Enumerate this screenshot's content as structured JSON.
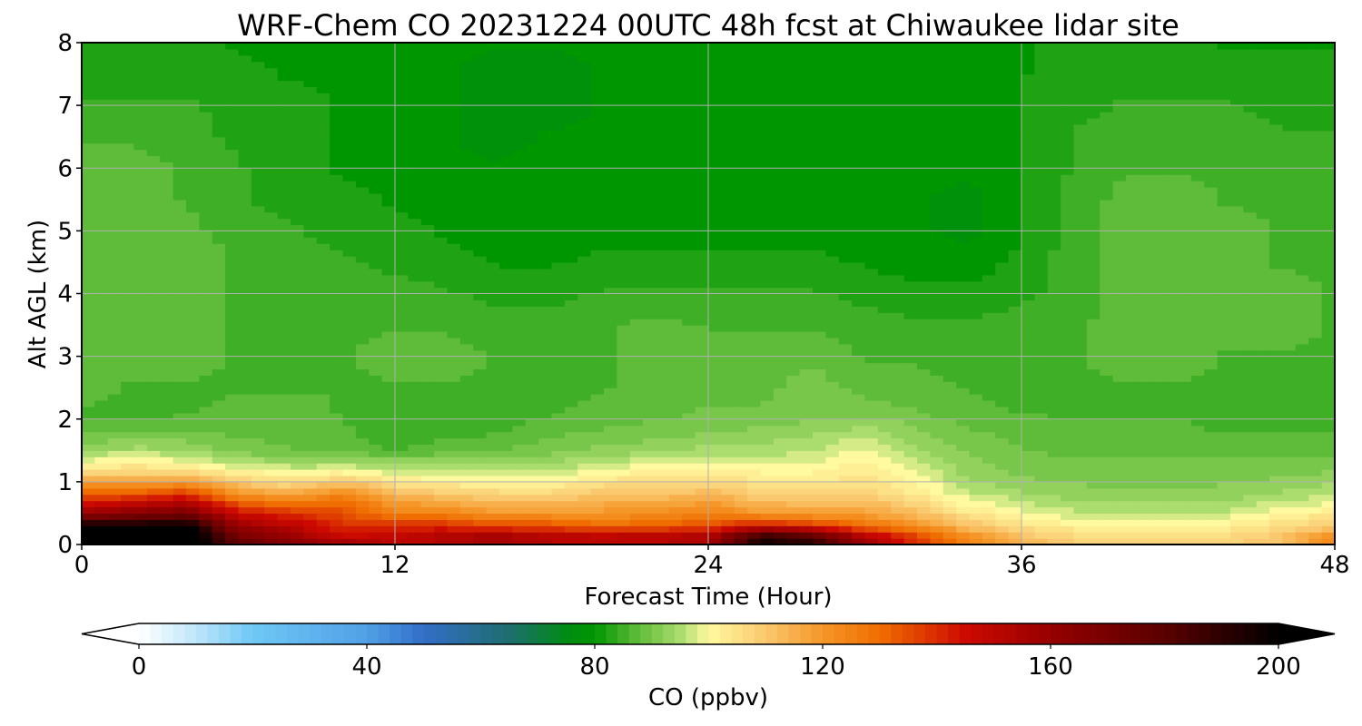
{
  "chart_data": {
    "type": "heatmap",
    "title": "WRF-Chem CO  20231224 00UTC 48h fcst at Chiwaukee lidar site",
    "xlabel": "Forecast Time (Hour)",
    "ylabel": "Alt AGL (km)",
    "xlim": [
      0,
      48
    ],
    "ylim": [
      0,
      8
    ],
    "x_ticks": [
      "0",
      "12",
      "24",
      "36",
      "48"
    ],
    "y_ticks": [
      "0",
      "1",
      "2",
      "3",
      "4",
      "5",
      "6",
      "7",
      "8"
    ],
    "grid": true,
    "colorbar": {
      "label": "CO  (ppbv)",
      "min": 0,
      "max": 200,
      "ticks": [
        "0",
        "40",
        "80",
        "120",
        "160",
        "200"
      ],
      "extend": "both"
    },
    "x_hours": [
      0,
      2,
      4,
      6,
      8,
      10,
      12,
      14,
      16,
      18,
      20,
      22,
      24,
      26,
      28,
      30,
      32,
      34,
      36,
      38,
      40,
      42,
      44,
      46,
      48
    ],
    "y_km": [
      0,
      0.15,
      0.3,
      0.5,
      0.7,
      0.9,
      1.1,
      1.3,
      1.5,
      1.8,
      2.1,
      2.5,
      3.0,
      3.5,
      4.0,
      4.5,
      5.0,
      5.5,
      6.0,
      6.5,
      7.0,
      7.5,
      8.0
    ],
    "co_ppbv": [
      [
        205,
        205,
        208,
        180,
        165,
        160,
        150,
        152,
        155,
        152,
        150,
        150,
        155,
        200,
        195,
        160,
        140,
        125,
        115,
        110,
        108,
        107,
        108,
        112,
        125
      ],
      [
        205,
        205,
        208,
        170,
        158,
        145,
        148,
        152,
        155,
        150,
        148,
        150,
        152,
        185,
        175,
        150,
        135,
        120,
        110,
        106,
        105,
        105,
        106,
        110,
        120
      ],
      [
        200,
        198,
        202,
        160,
        150,
        140,
        140,
        140,
        135,
        135,
        130,
        132,
        135,
        145,
        140,
        130,
        122,
        112,
        105,
        102,
        100,
        101,
        102,
        106,
        110
      ],
      [
        160,
        165,
        170,
        145,
        140,
        135,
        125,
        125,
        120,
        120,
        120,
        122,
        125,
        120,
        118,
        118,
        112,
        104,
        100,
        97,
        96,
        96,
        97,
        101,
        103
      ],
      [
        140,
        145,
        150,
        130,
        125,
        130,
        118,
        115,
        112,
        112,
        115,
        115,
        118,
        112,
        112,
        112,
        106,
        99,
        96,
        94,
        93,
        93,
        94,
        96,
        98
      ],
      [
        125,
        125,
        130,
        115,
        110,
        118,
        108,
        106,
        104,
        104,
        108,
        108,
        110,
        106,
        106,
        106,
        102,
        95,
        93,
        92,
        91,
        91,
        92,
        93,
        95
      ],
      [
        110,
        110,
        110,
        104,
        102,
        104,
        100,
        99,
        98,
        98,
        102,
        103,
        104,
        102,
        102,
        104,
        100,
        93,
        91,
        90,
        90,
        90,
        90,
        91,
        92
      ],
      [
        100,
        102,
        100,
        96,
        94,
        94,
        93,
        93,
        93,
        94,
        97,
        98,
        100,
        98,
        99,
        102,
        97,
        92,
        90,
        89,
        89,
        89,
        89,
        89,
        90
      ],
      [
        94,
        95,
        94,
        90,
        89,
        88,
        86,
        88,
        89,
        90,
        92,
        93,
        95,
        95,
        96,
        100,
        94,
        91,
        89,
        88,
        88,
        88,
        88,
        88,
        88
      ],
      [
        88,
        88,
        89,
        88,
        88,
        87,
        84,
        85,
        86,
        88,
        89,
        90,
        91,
        92,
        93,
        95,
        92,
        89,
        88,
        87,
        87,
        87,
        86,
        86,
        86
      ],
      [
        86,
        85,
        86,
        87,
        88,
        86,
        84,
        84,
        85,
        86,
        87,
        88,
        89,
        89,
        90,
        90,
        89,
        87,
        86,
        86,
        86,
        86,
        85,
        85,
        85
      ],
      [
        87,
        86,
        86,
        86,
        86,
        86,
        86,
        86,
        86,
        86,
        86,
        87,
        88,
        88,
        90,
        88,
        87,
        86,
        86,
        86,
        86,
        86,
        86,
        85,
        85
      ],
      [
        87,
        87,
        87,
        86,
        86,
        86,
        87,
        87,
        86,
        86,
        86,
        87,
        88,
        87,
        88,
        86,
        86,
        85,
        86,
        86,
        87,
        87,
        86,
        86,
        86
      ],
      [
        87,
        87,
        88,
        86,
        86,
        86,
        86,
        86,
        85,
        85,
        86,
        87,
        86,
        86,
        86,
        85,
        84,
        84,
        85,
        86,
        87,
        87,
        87,
        87,
        86
      ],
      [
        87,
        87,
        87,
        86,
        86,
        85,
        85,
        84,
        83,
        83,
        84,
        84,
        84,
        84,
        84,
        83,
        82,
        82,
        83,
        85,
        87,
        87,
        87,
        87,
        86
      ],
      [
        88,
        88,
        88,
        86,
        85,
        84,
        83,
        82,
        81,
        81,
        82,
        82,
        82,
        82,
        82,
        81,
        80,
        80,
        82,
        85,
        87,
        87,
        87,
        86,
        86
      ],
      [
        88,
        88,
        87,
        85,
        84,
        83,
        82,
        81,
        80,
        80,
        80,
        80,
        80,
        80,
        80,
        80,
        79,
        78,
        81,
        85,
        87,
        87,
        87,
        86,
        86
      ],
      [
        88,
        88,
        86,
        84,
        83,
        82,
        81,
        80,
        80,
        80,
        80,
        80,
        80,
        80,
        80,
        80,
        79,
        78,
        81,
        85,
        87,
        87,
        86,
        86,
        85
      ],
      [
        87,
        87,
        86,
        84,
        82,
        81,
        80,
        79,
        79,
        80,
        80,
        80,
        80,
        80,
        80,
        80,
        80,
        79,
        81,
        84,
        86,
        86,
        86,
        85,
        85
      ],
      [
        86,
        86,
        85,
        83,
        82,
        81,
        80,
        79,
        78,
        79,
        79,
        80,
        80,
        80,
        80,
        80,
        80,
        80,
        81,
        84,
        85,
        85,
        85,
        84,
        84
      ],
      [
        84,
        84,
        84,
        83,
        82,
        81,
        80,
        79,
        78,
        78,
        79,
        79,
        80,
        80,
        80,
        80,
        80,
        80,
        81,
        83,
        84,
        84,
        84,
        83,
        83
      ],
      [
        83,
        83,
        83,
        82,
        81,
        81,
        80,
        79,
        78,
        78,
        79,
        79,
        80,
        80,
        80,
        80,
        80,
        80,
        81,
        83,
        83,
        83,
        82,
        82,
        82
      ],
      [
        82,
        82,
        82,
        81,
        80,
        80,
        79,
        79,
        79,
        79,
        79,
        80,
        80,
        80,
        80,
        80,
        80,
        80,
        81,
        82,
        82,
        82,
        81,
        81,
        81
      ]
    ]
  }
}
